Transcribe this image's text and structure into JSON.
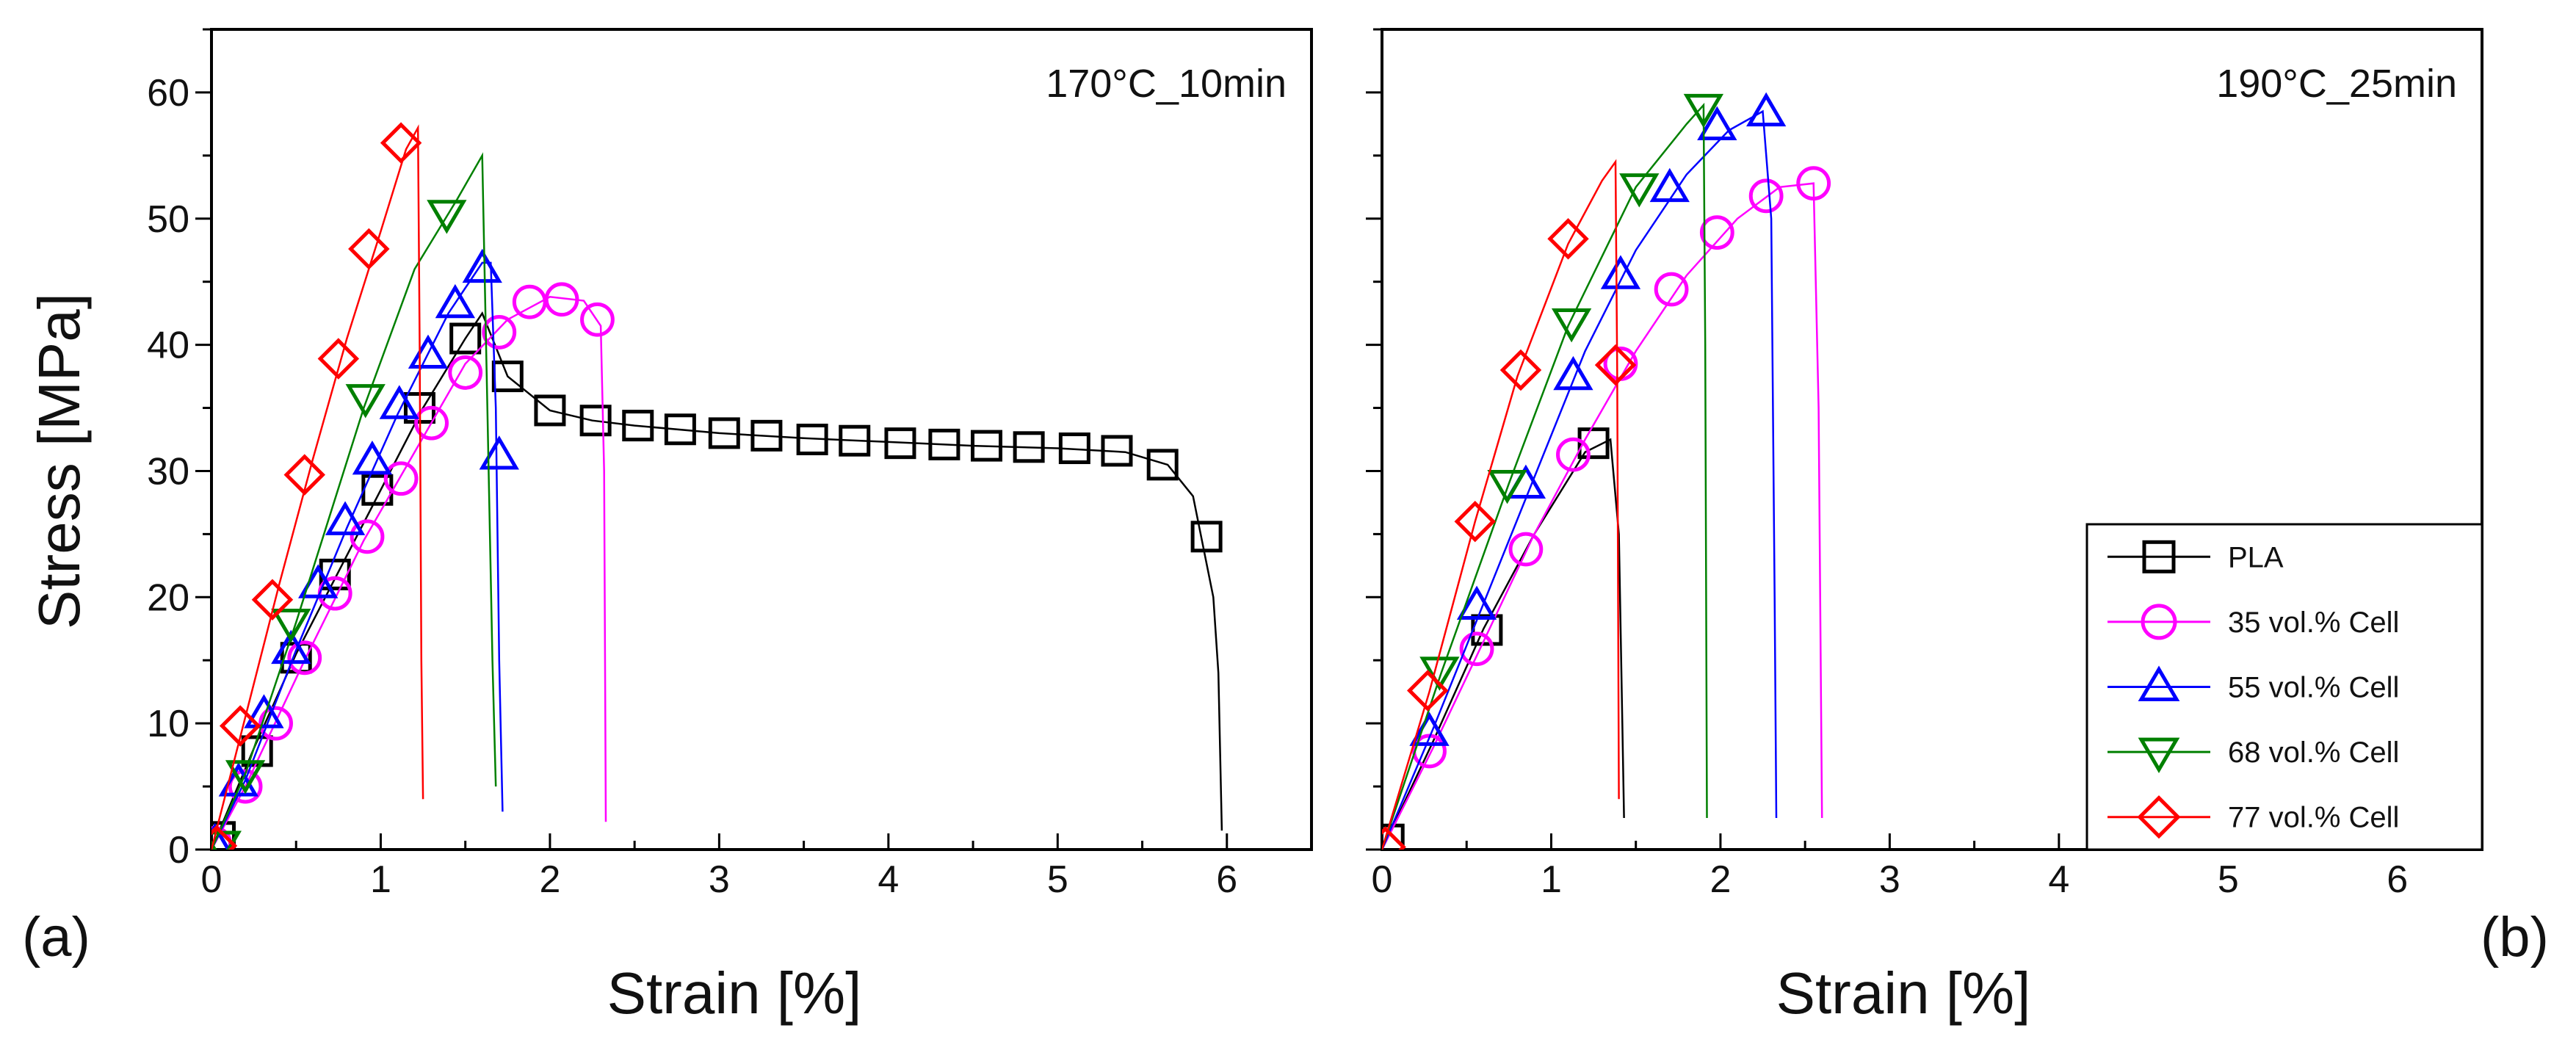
{
  "figure": {
    "ylabel": "Stress [MPa]",
    "xlabel": "Strain [%]"
  },
  "legend": {
    "placement": "panel-b bottom-right",
    "entries": [
      {
        "label": "PLA",
        "marker": "square",
        "color": "#000000"
      },
      {
        "label": "35 vol.% Cell",
        "marker": "circle",
        "color": "#ff00ff"
      },
      {
        "label": "55 vol.% Cell",
        "marker": "triangle-up",
        "color": "#0000ff"
      },
      {
        "label": "68 vol.% Cell",
        "marker": "triangle-down",
        "color": "#008000"
      },
      {
        "label": "77 vol.% Cell",
        "marker": "diamond",
        "color": "#ff0000"
      }
    ]
  },
  "chart_data": [
    {
      "type": "line",
      "panel": "(a)",
      "annotation": "170°C_10min",
      "xlabel": "Strain [%]",
      "ylabel": "Stress [MPa]",
      "xlim": [
        0,
        6.5
      ],
      "ylim": [
        0,
        65
      ],
      "xticks": [
        0,
        1,
        2,
        3,
        4,
        5,
        6
      ],
      "yticks": [
        0,
        10,
        20,
        30,
        40,
        50,
        60
      ],
      "series": [
        {
          "name": "PLA",
          "color": "#000000",
          "marker": "square",
          "line": [
            [
              0,
              0
            ],
            [
              0.25,
              8
            ],
            [
              0.5,
              15.5
            ],
            [
              0.75,
              22
            ],
            [
              1,
              28.5
            ],
            [
              1.25,
              35
            ],
            [
              1.5,
              40.5
            ],
            [
              1.6,
              42.5
            ],
            [
              1.75,
              37.5
            ],
            [
              2,
              34.8
            ],
            [
              2.25,
              34
            ],
            [
              2.5,
              33.6
            ],
            [
              3,
              33
            ],
            [
              3.5,
              32.6
            ],
            [
              4,
              32.3
            ],
            [
              4.5,
              32
            ],
            [
              5,
              31.8
            ],
            [
              5.4,
              31.5
            ],
            [
              5.65,
              30.5
            ],
            [
              5.8,
              28
            ],
            [
              5.92,
              20
            ],
            [
              5.95,
              14
            ],
            [
              5.97,
              1.5
            ]
          ],
          "markers": [
            [
              0.05,
              1
            ],
            [
              0.27,
              7.8
            ],
            [
              0.5,
              15.2
            ],
            [
              0.73,
              21.8
            ],
            [
              0.98,
              28.5
            ],
            [
              1.23,
              35
            ],
            [
              1.5,
              40.5
            ],
            [
              1.75,
              37.5
            ],
            [
              2,
              34.8
            ],
            [
              2.27,
              34
            ],
            [
              2.52,
              33.6
            ],
            [
              2.77,
              33.3
            ],
            [
              3.03,
              33
            ],
            [
              3.28,
              32.8
            ],
            [
              3.55,
              32.5
            ],
            [
              3.8,
              32.4
            ],
            [
              4.07,
              32.2
            ],
            [
              4.33,
              32.1
            ],
            [
              4.58,
              32
            ],
            [
              4.83,
              31.9
            ],
            [
              5.1,
              31.8
            ],
            [
              5.35,
              31.6
            ],
            [
              5.62,
              30.5
            ],
            [
              5.88,
              24.8
            ]
          ]
        },
        {
          "name": "35 vol.% Cell",
          "color": "#ff00ff",
          "marker": "circle",
          "line": [
            [
              0,
              0
            ],
            [
              0.2,
              5
            ],
            [
              0.55,
              15
            ],
            [
              0.9,
              24.5
            ],
            [
              1.2,
              31.5
            ],
            [
              1.5,
              38.5
            ],
            [
              1.75,
              42
            ],
            [
              2,
              43.8
            ],
            [
              2.2,
              43.5
            ],
            [
              2.3,
              41.5
            ],
            [
              2.32,
              30
            ],
            [
              2.33,
              2.2
            ]
          ],
          "markers": [
            [
              0.02,
              0.5
            ],
            [
              0.2,
              5
            ],
            [
              0.38,
              10
            ],
            [
              0.55,
              15.2
            ],
            [
              0.73,
              20.3
            ],
            [
              0.92,
              24.8
            ],
            [
              1.12,
              29.4
            ],
            [
              1.3,
              33.8
            ],
            [
              1.5,
              37.8
            ],
            [
              1.7,
              41
            ],
            [
              1.88,
              43.4
            ],
            [
              2.07,
              43.6
            ],
            [
              2.28,
              42
            ]
          ]
        },
        {
          "name": "55 vol.% Cell",
          "color": "#0000ff",
          "marker": "triangle-up",
          "line": [
            [
              0,
              0
            ],
            [
              0.2,
              5.5
            ],
            [
              0.5,
              15.8
            ],
            [
              0.8,
              25.5
            ],
            [
              1.1,
              34.5
            ],
            [
              1.4,
              42.5
            ],
            [
              1.6,
              46.5
            ],
            [
              1.65,
              46.5
            ],
            [
              1.68,
              35
            ],
            [
              1.7,
              15
            ],
            [
              1.72,
              3
            ]
          ],
          "markers": [
            [
              0.02,
              0.5
            ],
            [
              0.16,
              5.3
            ],
            [
              0.31,
              10.7
            ],
            [
              0.47,
              15.8
            ],
            [
              0.63,
              21
            ],
            [
              0.79,
              26
            ],
            [
              0.95,
              30.8
            ],
            [
              1.11,
              35.2
            ],
            [
              1.28,
              39.2
            ],
            [
              1.44,
              43.2
            ],
            [
              1.6,
              46
            ],
            [
              1.7,
              31.2
            ]
          ]
        },
        {
          "name": "68 vol.% Cell",
          "color": "#008000",
          "marker": "triangle-down",
          "line": [
            [
              0,
              0
            ],
            [
              0.2,
              6
            ],
            [
              0.5,
              18
            ],
            [
              0.9,
              35
            ],
            [
              1.2,
              46
            ],
            [
              1.45,
              51.5
            ],
            [
              1.6,
              55
            ],
            [
              1.63,
              35
            ],
            [
              1.66,
              15
            ],
            [
              1.68,
              5
            ]
          ],
          "markers": [
            [
              0.06,
              0.4
            ],
            [
              0.2,
              6
            ],
            [
              0.47,
              18
            ],
            [
              0.91,
              35.8
            ],
            [
              1.39,
              50.4
            ]
          ]
        },
        {
          "name": "77 vol.% Cell",
          "color": "#ff0000",
          "marker": "diamond",
          "line": [
            [
              0,
              0
            ],
            [
              0.2,
              10.5
            ],
            [
              0.4,
              21
            ],
            [
              0.6,
              31
            ],
            [
              0.8,
              40.5
            ],
            [
              1,
              49
            ],
            [
              1.15,
              55.5
            ],
            [
              1.22,
              57.2
            ],
            [
              1.23,
              40
            ],
            [
              1.24,
              15
            ],
            [
              1.25,
              4
            ]
          ],
          "markers": [
            [
              0.03,
              0.3
            ],
            [
              0.17,
              9.8
            ],
            [
              0.36,
              19.8
            ],
            [
              0.55,
              29.7
            ],
            [
              0.75,
              38.9
            ],
            [
              0.93,
              47.6
            ],
            [
              1.12,
              56
            ]
          ]
        }
      ]
    },
    {
      "type": "line",
      "panel": "(b)",
      "annotation": "190°C_25min",
      "xlabel": "Strain [%]",
      "ylabel": "",
      "xlim": [
        0,
        6.5
      ],
      "ylim": [
        0,
        65
      ],
      "xticks": [
        0,
        1,
        2,
        3,
        4,
        5,
        6
      ],
      "yticks": [
        0,
        10,
        20,
        30,
        40,
        50,
        60
      ],
      "series": [
        {
          "name": "PLA",
          "color": "#000000",
          "marker": "square",
          "line": [
            [
              0,
              0
            ],
            [
              0.3,
              8.5
            ],
            [
              0.6,
              17.5
            ],
            [
              0.9,
              25
            ],
            [
              1.2,
              31.5
            ],
            [
              1.35,
              32.5
            ],
            [
              1.4,
              25
            ],
            [
              1.42,
              10
            ],
            [
              1.43,
              2.5
            ]
          ],
          "markers": [
            [
              0.04,
              0.8
            ],
            [
              0.62,
              17.4
            ],
            [
              1.25,
              32.2
            ]
          ]
        },
        {
          "name": "35 vol.% Cell",
          "color": "#ff00ff",
          "marker": "circle",
          "line": [
            [
              0,
              0
            ],
            [
              0.3,
              8
            ],
            [
              0.6,
              16.5
            ],
            [
              0.9,
              25
            ],
            [
              1.2,
              32.5
            ],
            [
              1.5,
              39.5
            ],
            [
              1.8,
              45.5
            ],
            [
              2.1,
              50
            ],
            [
              2.35,
              52.5
            ],
            [
              2.55,
              52.8
            ],
            [
              2.58,
              35
            ],
            [
              2.6,
              2.5
            ]
          ],
          "markers": [
            [
              0.28,
              7.8
            ],
            [
              0.56,
              15.9
            ],
            [
              0.85,
              23.8
            ],
            [
              1.13,
              31.3
            ],
            [
              1.41,
              38.5
            ],
            [
              1.71,
              44.4
            ],
            [
              1.98,
              48.9
            ],
            [
              2.27,
              51.8
            ],
            [
              2.55,
              52.8
            ]
          ]
        },
        {
          "name": "55 vol.% Cell",
          "color": "#0000ff",
          "marker": "triangle-up",
          "line": [
            [
              0,
              0
            ],
            [
              0.3,
              9.5
            ],
            [
              0.6,
              19.5
            ],
            [
              0.9,
              29.5
            ],
            [
              1.2,
              39.5
            ],
            [
              1.5,
              47.5
            ],
            [
              1.8,
              53.5
            ],
            [
              2.05,
              57
            ],
            [
              2.25,
              58.5
            ],
            [
              2.3,
              50
            ],
            [
              2.32,
              20
            ],
            [
              2.33,
              2.5
            ]
          ],
          "markers": [
            [
              0.28,
              9.3
            ],
            [
              0.56,
              19.3
            ],
            [
              0.85,
              28.9
            ],
            [
              1.13,
              37.5
            ],
            [
              1.41,
              45.5
            ],
            [
              1.7,
              52.4
            ],
            [
              1.98,
              57.3
            ],
            [
              2.27,
              58.4
            ]
          ]
        },
        {
          "name": "68 vol.% Cell",
          "color": "#008000",
          "marker": "triangle-down",
          "line": [
            [
              0,
              0
            ],
            [
              0.35,
              14
            ],
            [
              0.75,
              29
            ],
            [
              1.1,
              41.5
            ],
            [
              1.5,
              52.5
            ],
            [
              1.8,
              57.5
            ],
            [
              1.9,
              59
            ],
            [
              1.91,
              40
            ],
            [
              1.92,
              2.5
            ]
          ],
          "markers": [
            [
              0.34,
              14.2
            ],
            [
              0.74,
              29
            ],
            [
              1.12,
              41.8
            ],
            [
              1.52,
              52.5
            ],
            [
              1.9,
              58.8
            ]
          ]
        },
        {
          "name": "77 vol.% Cell",
          "color": "#ff0000",
          "marker": "diamond",
          "line": [
            [
              0,
              0
            ],
            [
              0.28,
              12.5
            ],
            [
              0.55,
              26
            ],
            [
              0.8,
              37.5
            ],
            [
              1.1,
              48
            ],
            [
              1.3,
              53
            ],
            [
              1.38,
              54.5
            ],
            [
              1.39,
              38
            ],
            [
              1.4,
              4
            ]
          ],
          "markers": [
            [
              0.02,
              0.2
            ],
            [
              0.27,
              12.6
            ],
            [
              0.55,
              26
            ],
            [
              0.82,
              38
            ],
            [
              1.1,
              48.4
            ],
            [
              1.38,
              38.4
            ]
          ]
        }
      ]
    }
  ]
}
